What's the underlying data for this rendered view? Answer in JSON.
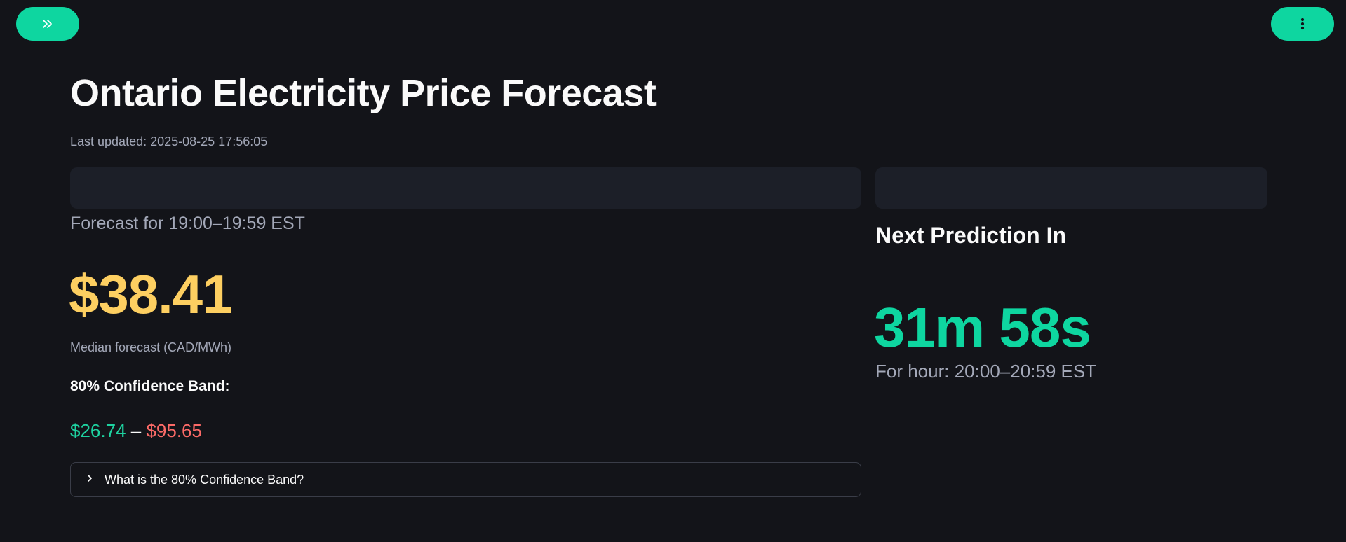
{
  "app": {
    "title": "Ontario Electricity Price Forecast",
    "last_updated": "Last updated: 2025-08-25 17:56:05"
  },
  "header": {
    "expand_icon": "double-chevron-right-icon",
    "menu_icon": "vertical-dots-icon",
    "accent_color": "#0ed6a0"
  },
  "forecast": {
    "label": "Forecast for 19:00–19:59 EST",
    "price": "$38.41",
    "price_color": "#fdcf61",
    "median_label": "Median forecast (CAD/MWh)",
    "band_title": "80% Confidence Band:",
    "band_low": "$26.74",
    "band_dash": " – ",
    "band_high": "$95.65",
    "band_low_color": "#1ed2a0",
    "band_high_color": "#fc6a67",
    "expander_label": "What is the 80% Confidence Band?",
    "expander_icon": "chevron-right-icon"
  },
  "next": {
    "title": "Next Prediction In",
    "countdown": "31m 58s",
    "hour_label": "For hour: 20:00–20:59 EST"
  }
}
